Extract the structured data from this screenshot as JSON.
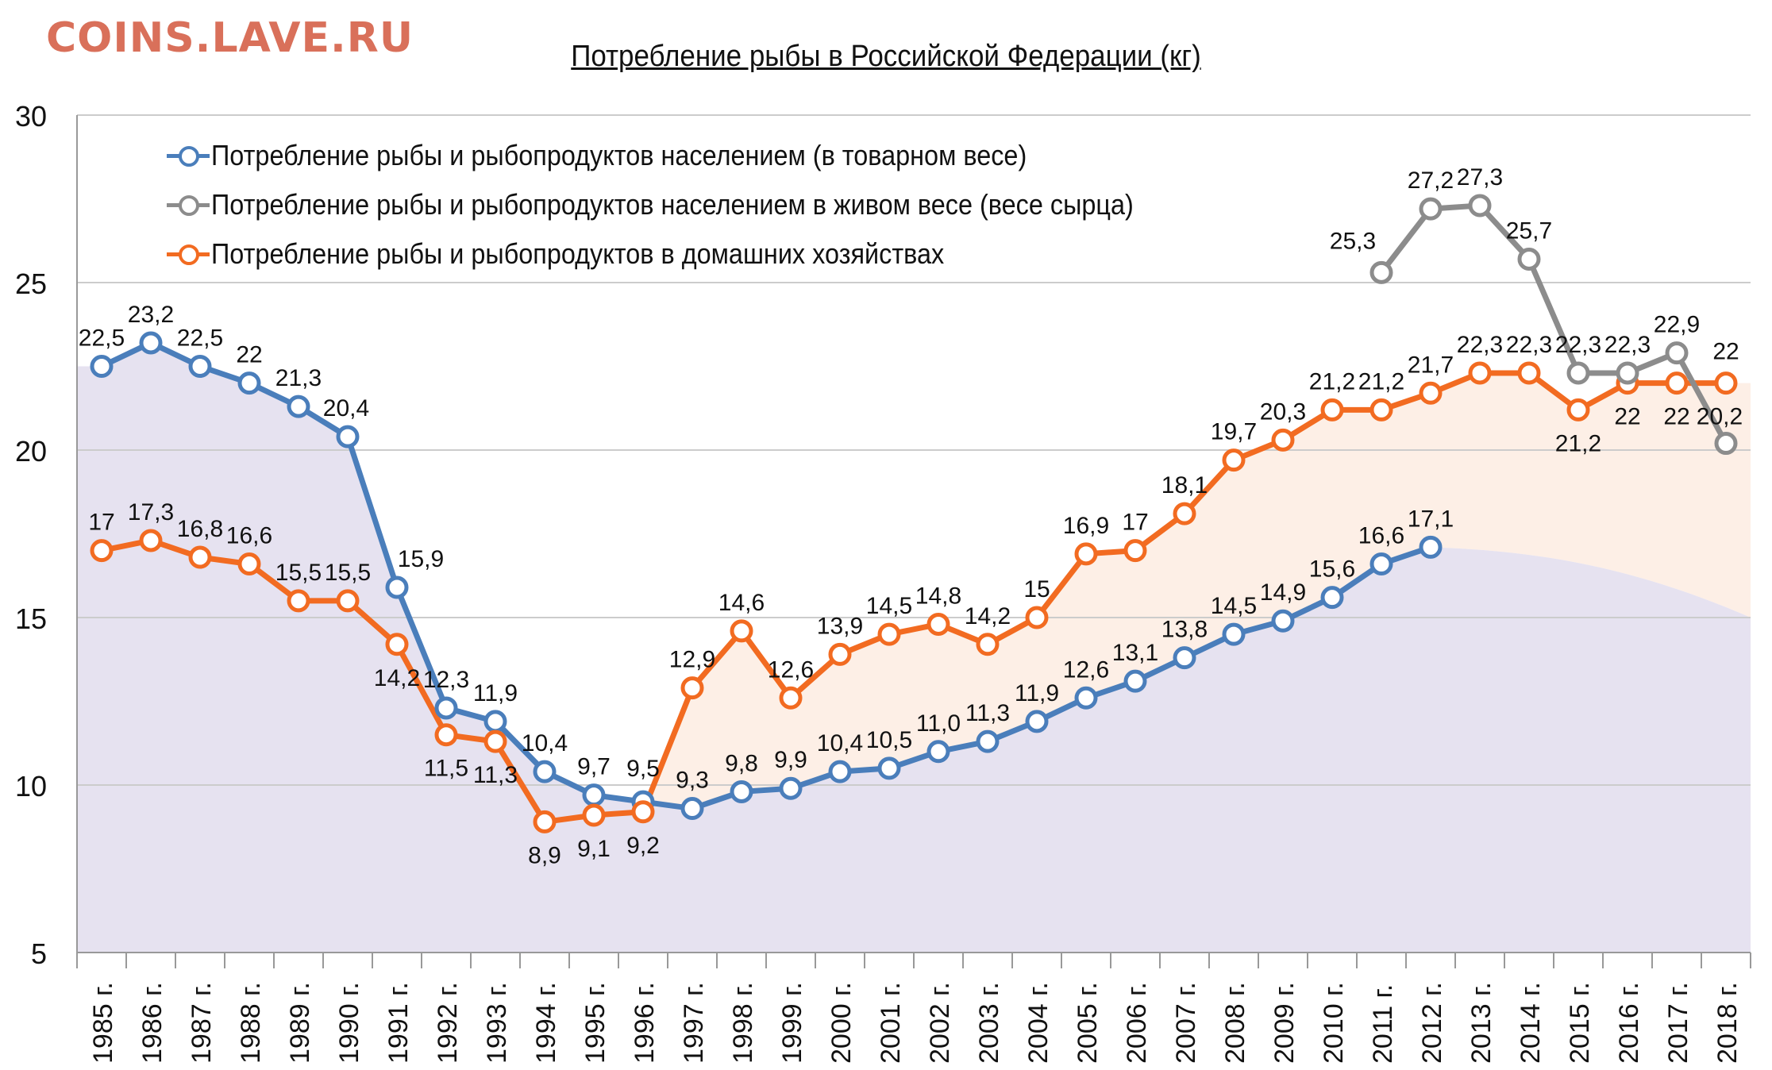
{
  "watermark": "COINS.LAVE.RU",
  "colors": {
    "watermark": "#D9705A",
    "blue": "#4A7EBB",
    "gray": "#8C8C8C",
    "orange": "#F26B21",
    "area_purple": "#E6E2F0",
    "area_peach": "#FDEFE6",
    "grid": "#CCCCCC"
  },
  "chart_data": {
    "type": "line",
    "title": "Потребление рыбы в Российской Федерации (кг)",
    "ylim": [
      5,
      30
    ],
    "y_ticks": [
      "5",
      "10",
      "15",
      "20",
      "25",
      "30"
    ],
    "grid": true,
    "legend_position": "top-left",
    "categories": [
      "1985 г.",
      "1986 г.",
      "1987 г.",
      "1988 г.",
      "1989 г.",
      "1990 г.",
      "1991 г.",
      "1992 г.",
      "1993 г.",
      "1994 г.",
      "1995 г.",
      "1996 г.",
      "1997 г.",
      "1998 г.",
      "1999 г.",
      "2000 г.",
      "2001 г.",
      "2002 г.",
      "2003 г.",
      "2004 г.",
      "2005 г.",
      "2006 г.",
      "2007 г.",
      "2008 г.",
      "2009 г.",
      "2010 г.",
      "2011 г.",
      "2012 г.",
      "2013 г.",
      "2014 г.",
      "2015 г.",
      "2016 г.",
      "2017 г.",
      "2018 г."
    ],
    "series": [
      {
        "name": "Потребление рыбы и рыбопродуктов населением (в товарном весе)",
        "color": "#4A7EBB",
        "values": [
          22.5,
          23.2,
          22.5,
          22,
          21.3,
          20.4,
          15.9,
          12.3,
          11.9,
          10.4,
          9.7,
          9.5,
          9.3,
          9.8,
          9.9,
          10.4,
          10.5,
          11.0,
          11.3,
          11.9,
          12.6,
          13.1,
          13.8,
          14.5,
          14.9,
          15.6,
          16.6,
          17.1,
          null,
          null,
          null,
          null,
          null,
          null
        ],
        "labels": [
          "22,5",
          "23,2",
          "22,5",
          "22",
          "21,3",
          "20,4",
          "15,9",
          "12,3",
          "11,9",
          "10,4",
          "9,7",
          "9,5",
          "9,3",
          "9,8",
          "9,9",
          "10,4",
          "10,5",
          "11,0",
          "11,3",
          "11,9",
          "12,6",
          "13,1",
          "13,8",
          "14,5",
          "14,9",
          "15,6",
          "16,6",
          "17,1",
          null,
          null,
          null,
          null,
          null,
          null
        ]
      },
      {
        "name": "Потребление рыбы и рыбопродуктов населением в живом весе (весе сырца)",
        "color": "#8C8C8C",
        "values": [
          null,
          null,
          null,
          null,
          null,
          null,
          null,
          null,
          null,
          null,
          null,
          null,
          null,
          null,
          null,
          null,
          null,
          null,
          null,
          null,
          null,
          null,
          null,
          null,
          null,
          null,
          25.3,
          27.2,
          27.3,
          25.7,
          22.3,
          22.3,
          22.9,
          20.2
        ],
        "labels": [
          null,
          null,
          null,
          null,
          null,
          null,
          null,
          null,
          null,
          null,
          null,
          null,
          null,
          null,
          null,
          null,
          null,
          null,
          null,
          null,
          null,
          null,
          null,
          null,
          null,
          null,
          "25,3",
          "27,2",
          "27,3",
          "25,7",
          "22,3",
          "22,3",
          "22,9",
          "20,2"
        ]
      },
      {
        "name": "Потребление рыбы и рыбопродуктов в домашних хозяйствах",
        "color": "#F26B21",
        "values": [
          17,
          17.3,
          16.8,
          16.6,
          15.5,
          15.5,
          14.2,
          11.5,
          11.3,
          8.9,
          9.1,
          9.2,
          12.9,
          14.6,
          12.6,
          13.9,
          14.5,
          14.8,
          14.2,
          15,
          16.9,
          17,
          18.1,
          19.7,
          20.3,
          21.2,
          21.2,
          21.7,
          22.3,
          22.3,
          21.2,
          22,
          22,
          22
        ],
        "labels": [
          "17",
          "17,3",
          "16,8",
          "16,6",
          "15,5",
          "15,5",
          "14,2",
          "11,5",
          "11,3",
          "8,9",
          "9,1",
          "9,2",
          "12,9",
          "14,6",
          "12,6",
          "13,9",
          "14,5",
          "14,8",
          "14,2",
          "15",
          "16,9",
          "17",
          "18,1",
          "19,7",
          "20,3",
          "21,2",
          "21,2",
          "21,7",
          "22,3",
          "22,3",
          "21,2",
          "22",
          "22",
          "22"
        ]
      }
    ]
  }
}
